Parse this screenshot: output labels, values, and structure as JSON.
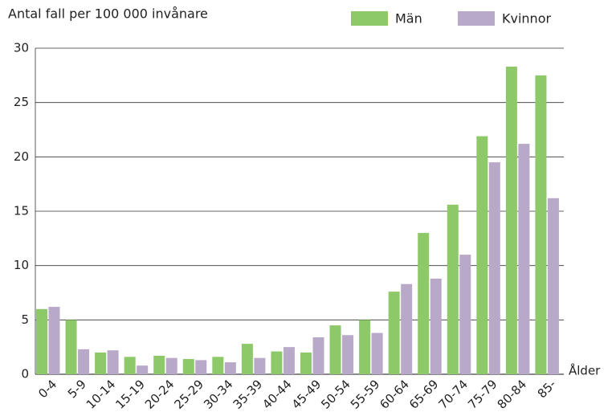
{
  "chart_data": {
    "type": "bar",
    "title": "Antal fall per 100 000 invånare",
    "x_label": "Ålder",
    "categories": [
      "0-4",
      "5-9",
      "10-14",
      "15-19",
      "20-24",
      "25-29",
      "30-34",
      "35-39",
      "40-44",
      "45-49",
      "50-54",
      "55-59",
      "60-64",
      "65-69",
      "70-74",
      "75-79",
      "80-84",
      "85-"
    ],
    "series": [
      {
        "name": "Män",
        "color": "#8dc968",
        "values": [
          6.0,
          5.0,
          2.0,
          1.6,
          1.7,
          1.4,
          1.6,
          2.8,
          2.1,
          2.0,
          4.5,
          5.0,
          7.6,
          13.0,
          15.6,
          21.9,
          28.3,
          27.5
        ]
      },
      {
        "name": "Kvinnor",
        "color": "#b9a9c9",
        "values": [
          6.2,
          2.3,
          2.2,
          0.8,
          1.5,
          1.3,
          1.1,
          1.5,
          2.5,
          3.4,
          3.6,
          3.8,
          8.3,
          8.8,
          11.0,
          19.5,
          21.2,
          16.2
        ]
      }
    ],
    "ylim": [
      0,
      30
    ],
    "yticks": [
      0,
      5,
      10,
      15,
      20,
      25,
      30
    ],
    "grid": true,
    "legend": "top-right"
  }
}
